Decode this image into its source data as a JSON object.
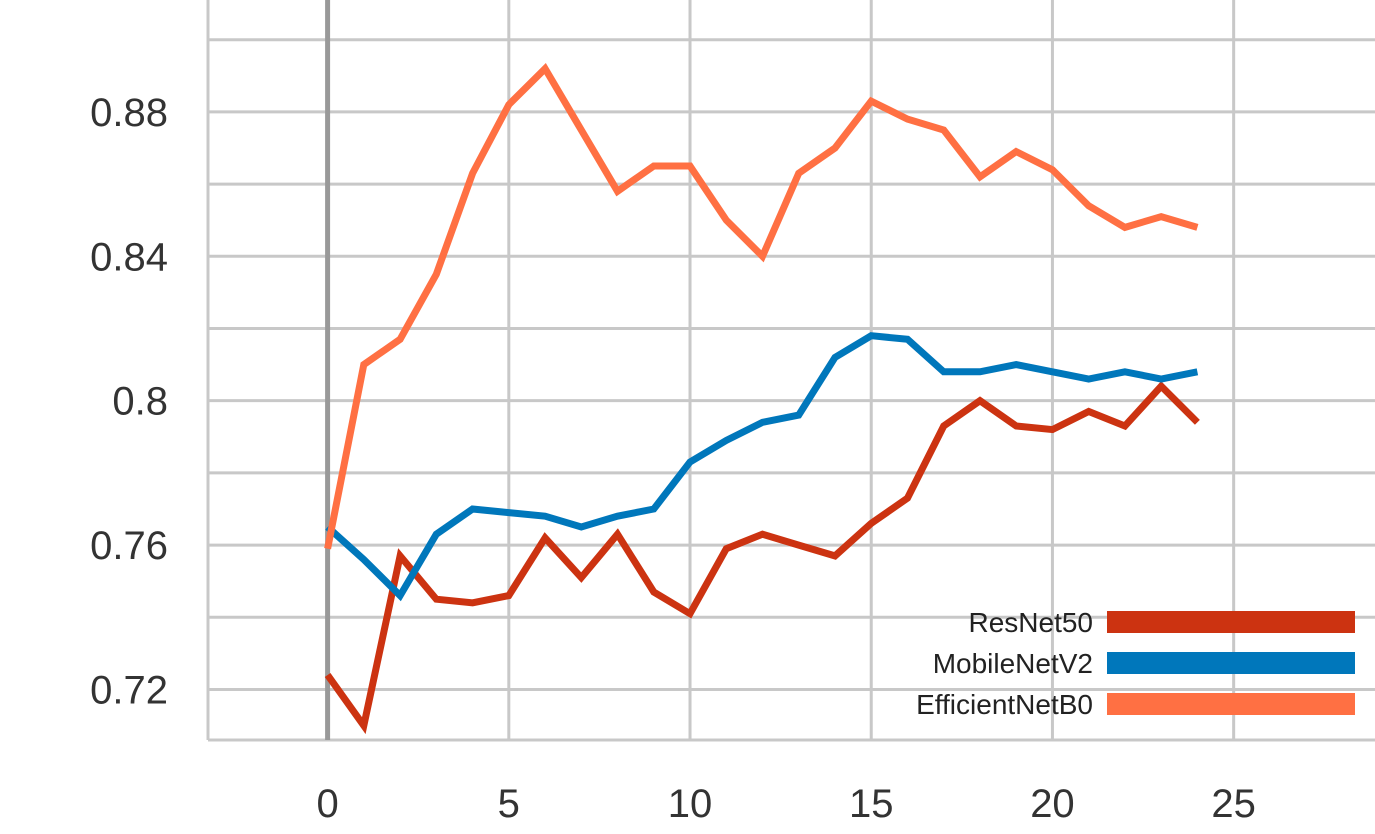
{
  "chart_data": {
    "type": "line",
    "title": "",
    "xlabel": "",
    "ylabel": "",
    "xlim": [
      -3.3,
      28.9
    ],
    "ylim": [
      0.706,
      0.911
    ],
    "x_ticks": [
      0,
      5,
      10,
      15,
      20,
      25
    ],
    "y_ticks": [
      0.72,
      0.76,
      0.8,
      0.84,
      0.88
    ],
    "y_tick_labels": [
      "0.72",
      "0.76",
      "0.8",
      "0.84",
      "0.88"
    ],
    "grid": true,
    "legend_position": "bottom-right",
    "x": [
      0,
      1,
      2,
      3,
      4,
      5,
      6,
      7,
      8,
      9,
      10,
      11,
      12,
      13,
      14,
      15,
      16,
      17,
      18,
      19,
      20,
      21,
      22,
      23,
      24
    ],
    "series": [
      {
        "name": "ResNet50",
        "color": "#cc3311",
        "values": [
          0.724,
          0.71,
          0.757,
          0.745,
          0.744,
          0.746,
          0.762,
          0.751,
          0.763,
          0.747,
          0.741,
          0.759,
          0.763,
          0.76,
          0.757,
          0.766,
          0.773,
          0.793,
          0.8,
          0.793,
          0.792,
          0.797,
          0.793,
          0.804,
          0.794
        ]
      },
      {
        "name": "MobileNetV2",
        "color": "#0077bb",
        "values": [
          0.765,
          0.756,
          0.746,
          0.763,
          0.77,
          0.769,
          0.768,
          0.765,
          0.768,
          0.77,
          0.783,
          0.789,
          0.794,
          0.796,
          0.812,
          0.818,
          0.817,
          0.808,
          0.808,
          0.81,
          0.808,
          0.806,
          0.808,
          0.806,
          0.808
        ]
      },
      {
        "name": "EfficientNetB0",
        "color": "#ff7043",
        "values": [
          0.759,
          0.81,
          0.817,
          0.835,
          0.863,
          0.882,
          0.892,
          0.875,
          0.858,
          0.865,
          0.865,
          0.85,
          0.84,
          0.863,
          0.87,
          0.883,
          0.878,
          0.875,
          0.862,
          0.869,
          0.864,
          0.854,
          0.848,
          0.851,
          0.848
        ]
      }
    ]
  }
}
